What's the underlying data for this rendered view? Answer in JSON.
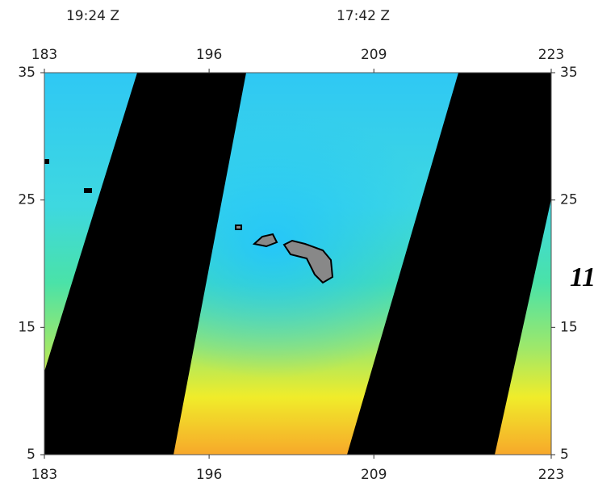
{
  "header": {
    "times": [
      "19:24 Z",
      "17:42 Z"
    ]
  },
  "axes": {
    "lon_ticks": [
      183,
      196,
      209,
      223
    ],
    "lat_ticks": [
      35,
      25,
      15,
      5
    ]
  },
  "annotation": "11"
}
